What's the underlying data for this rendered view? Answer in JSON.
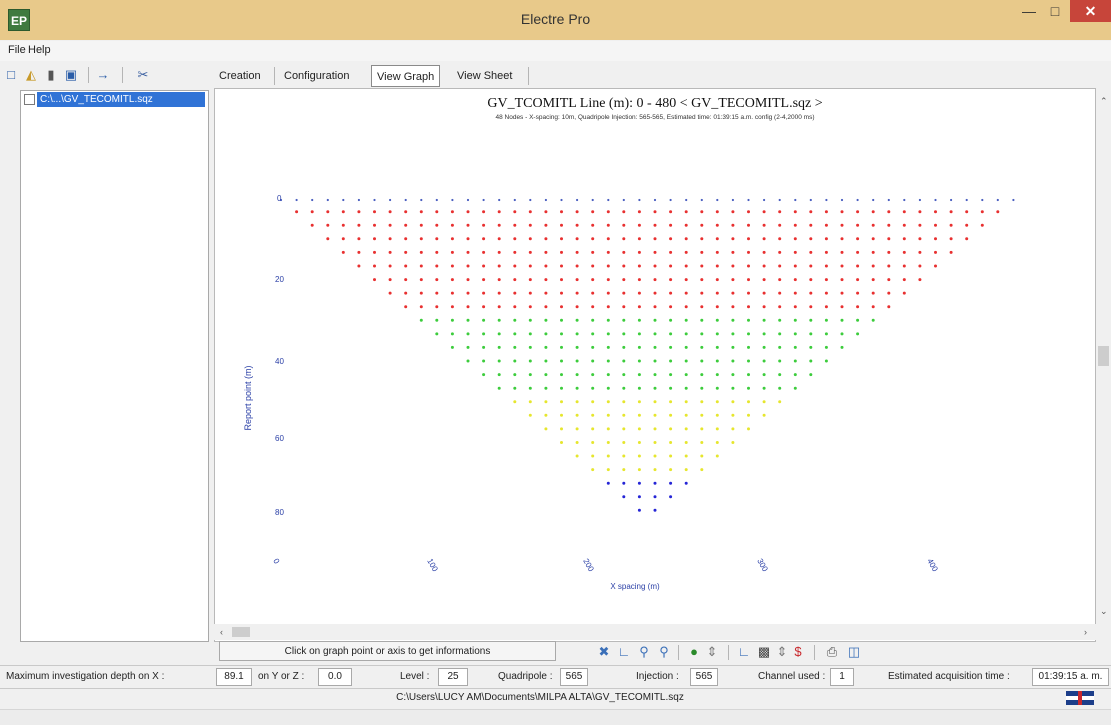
{
  "window": {
    "title": "Electre Pro",
    "app_icon_text": "EP",
    "minimize_icon": "minimize-icon",
    "maximize_icon": "maximize-icon",
    "close_icon": "close-icon"
  },
  "menu": {
    "items": [
      "File",
      "Help"
    ]
  },
  "left_toolbar": {
    "icons": [
      "new-file-icon",
      "open-folder-icon",
      "open-file-icon",
      "save-icon",
      "export-icon",
      "cut-icon"
    ]
  },
  "file_tree": {
    "items": [
      {
        "label": "C:\\...\\GV_TECOMITL.sqz",
        "selected": true,
        "checked": false
      }
    ]
  },
  "tabs": [
    {
      "label": "Creation",
      "active": false
    },
    {
      "label": "Configuration",
      "active": false
    },
    {
      "label": "View Graph",
      "active": true
    },
    {
      "label": "View Sheet",
      "active": false
    }
  ],
  "graph": {
    "title": "GV_TCOMITL   Line (m): 0 - 480 < GV_TECOMITL.sqz >",
    "subtitle": "48 Nodes - X-spacing: 10m, Quadripole Injection: 565-565, Estimated time: 01:39:15 a.m. config (2-4,2000 ms)"
  },
  "chart_data": {
    "type": "scatter",
    "title": "GV_TCOMITL   Line (m): 0 - 480 < GV_TECOMITL.sqz >",
    "xlabel": "X spacing (m)",
    "ylabel": "Report point (m)",
    "xlim": [
      0,
      480
    ],
    "ylim": [
      0,
      91
    ],
    "y_inverted": true,
    "x_ticks": [
      "0",
      "100",
      "200",
      "300",
      "400"
    ],
    "y_ticks": [
      "0",
      "20",
      "40",
      "60",
      "80"
    ],
    "electrodes": {
      "count": 48,
      "spacing_m": 10,
      "color": "#4a5fc0"
    },
    "levels": 25,
    "level_colors": [
      {
        "from_level": 1,
        "to_level": 8,
        "color": "#e83030"
      },
      {
        "from_level": 9,
        "to_level": 14,
        "color": "#3ccc3c"
      },
      {
        "from_level": 15,
        "to_level": 20,
        "color": "#e6e62e"
      },
      {
        "from_level": 21,
        "to_level": 24,
        "color": "#2525d6"
      },
      {
        "from_level": 25,
        "to_level": 25,
        "color": "#c030c0"
      }
    ]
  },
  "info_bar": {
    "hint": "Click on graph point or axis to get informations",
    "icons": [
      "fit-icon",
      "axis-zoom-icon",
      "zoom-in-icon",
      "zoom-out-icon",
      "color-icon",
      "view-icon",
      "print-icon",
      "export-icon",
      "print-setup-icon",
      "save-image-icon"
    ]
  },
  "status": {
    "max_depth_x_label": "Maximum investigation depth on X :",
    "max_depth_x_value": "89.1",
    "yz_label": "on Y or Z :",
    "yz_value": "0.0",
    "level_label": "Level :",
    "level_value": "25",
    "quadripole_label": "Quadripole :",
    "quadripole_value": "565",
    "injection_label": "Injection :",
    "injection_value": "565",
    "channel_label": "Channel used :",
    "channel_value": "1",
    "acq_time_label": "Estimated acquisition time :",
    "acq_time_value": "01:39:15 a. m."
  },
  "path_bar": {
    "path": "C:\\Users\\LUCY AM\\Documents\\MILPA ALTA\\GV_TECOMITL.sqz",
    "flag_icon": "uk-flag-icon"
  }
}
